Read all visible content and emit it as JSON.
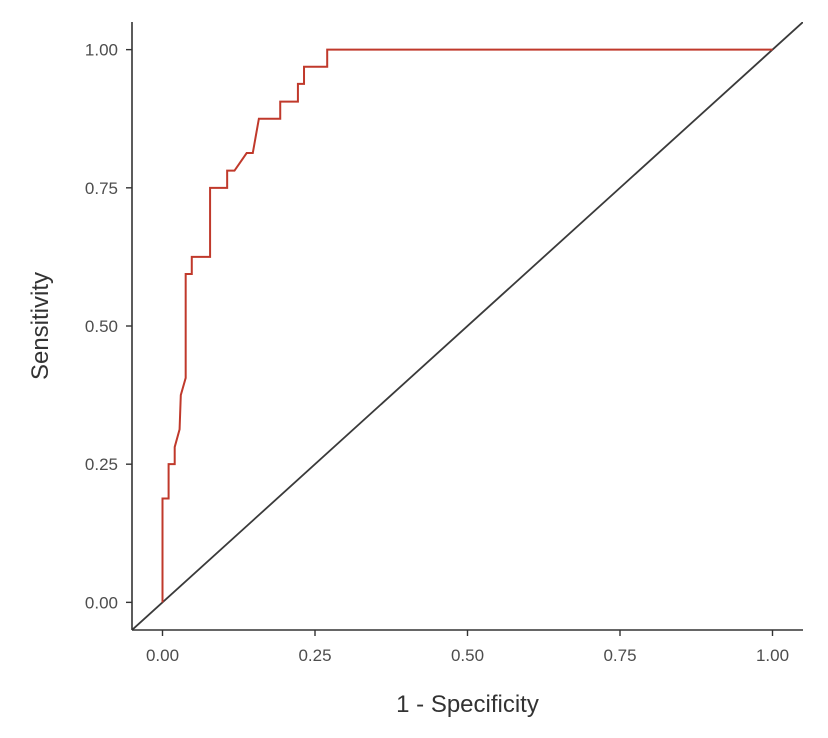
{
  "chart_data": {
    "type": "line",
    "title": "",
    "xlabel": "1 - Specificity",
    "ylabel": "Sensitivity",
    "xlim": [
      -0.05,
      1.05
    ],
    "ylim": [
      -0.05,
      1.05
    ],
    "x_ticks": [
      "0.00",
      "0.25",
      "0.50",
      "0.75",
      "1.00"
    ],
    "y_ticks": [
      "0.00",
      "0.25",
      "0.50",
      "0.75",
      "1.00"
    ],
    "grid": false,
    "legend": "none",
    "colors": {
      "roc_curve": "#c0392b",
      "reference_line": "#3a3a3a",
      "axis": "#333333",
      "tick_text": "#4d4d4d"
    },
    "series": [
      {
        "points": [
          [
            0.0,
            0.0
          ],
          [
            0.0,
            0.188
          ],
          [
            0.01,
            0.188
          ],
          [
            0.01,
            0.25
          ],
          [
            0.02,
            0.25
          ],
          [
            0.02,
            0.281
          ],
          [
            0.028,
            0.313
          ],
          [
            0.03,
            0.375
          ],
          [
            0.038,
            0.406
          ],
          [
            0.038,
            0.594
          ],
          [
            0.048,
            0.594
          ],
          [
            0.048,
            0.625
          ],
          [
            0.078,
            0.625
          ],
          [
            0.078,
            0.75
          ],
          [
            0.106,
            0.75
          ],
          [
            0.106,
            0.781
          ],
          [
            0.118,
            0.781
          ],
          [
            0.138,
            0.813
          ],
          [
            0.148,
            0.813
          ],
          [
            0.158,
            0.875
          ],
          [
            0.193,
            0.875
          ],
          [
            0.193,
            0.906
          ],
          [
            0.222,
            0.906
          ],
          [
            0.222,
            0.938
          ],
          [
            0.232,
            0.938
          ],
          [
            0.232,
            0.969
          ],
          [
            0.27,
            0.969
          ],
          [
            0.27,
            1.0
          ],
          [
            1.0,
            1.0
          ]
        ]
      },
      {
        "points": [
          [
            -0.05,
            -0.05
          ],
          [
            1.05,
            1.05
          ]
        ]
      }
    ]
  }
}
